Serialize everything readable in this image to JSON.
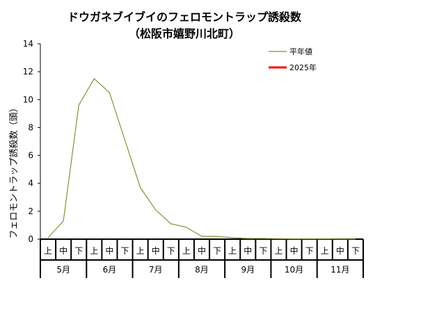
{
  "chart_data": {
    "type": "line",
    "title": "ドウガネブイブイのフェロモントラップ誘殺数",
    "subtitle": "（松阪市嬉野川北町）",
    "ylabel": "フェロモントラップ誘殺数（頭）",
    "xlabel": "",
    "ylim": [
      0,
      14
    ],
    "y_ticks": [
      0,
      2,
      4,
      6,
      8,
      10,
      12,
      14
    ],
    "months": [
      "5月",
      "6月",
      "7月",
      "8月",
      "9月",
      "10月",
      "11月"
    ],
    "dekads": [
      "上",
      "中",
      "下"
    ],
    "grid": false,
    "legend_position": "top-right",
    "series": [
      {
        "name": "平年値",
        "color": "#8b8b3a",
        "values": [
          0.1,
          1.3,
          9.6,
          11.5,
          10.5,
          7.1,
          3.7,
          2.1,
          1.1,
          0.85,
          0.2,
          0.2,
          0.1,
          0.05,
          0.05,
          0.03,
          0.02,
          0.02,
          0.02,
          0.01,
          0.01
        ]
      },
      {
        "name": "2025年",
        "color": "#ff0000",
        "values": []
      }
    ]
  }
}
